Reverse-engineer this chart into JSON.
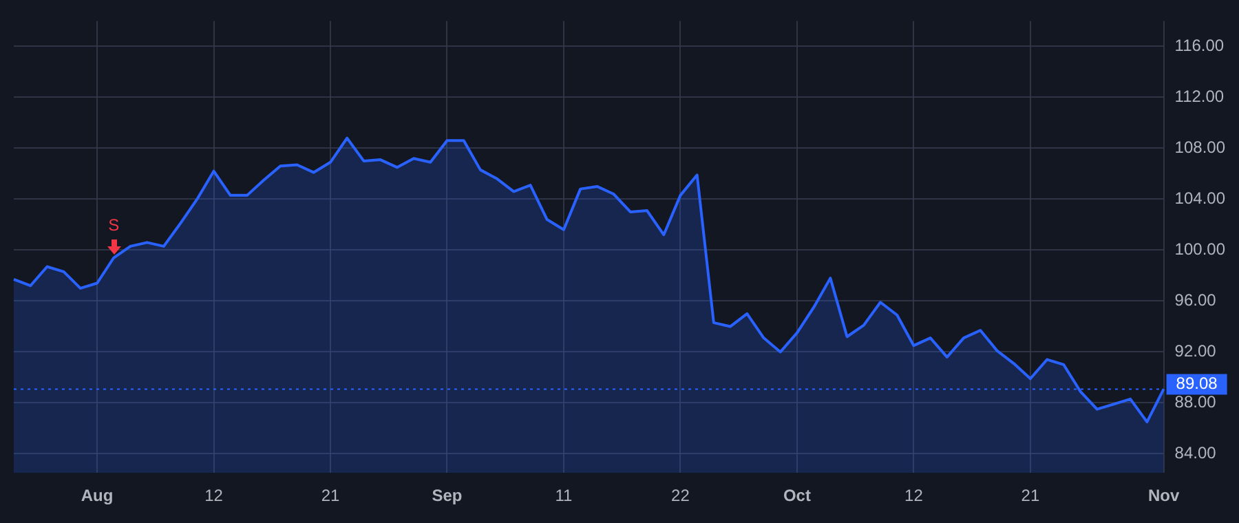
{
  "chart_data": {
    "type": "area",
    "categories": [
      null,
      null,
      null,
      null,
      null,
      "Aug",
      null,
      null,
      null,
      null,
      null,
      null,
      "12",
      null,
      null,
      null,
      null,
      null,
      null,
      "21",
      null,
      null,
      null,
      null,
      null,
      null,
      "Sep",
      null,
      null,
      null,
      null,
      null,
      null,
      "11",
      null,
      null,
      null,
      null,
      null,
      null,
      "22",
      null,
      null,
      null,
      null,
      null,
      null,
      "Oct",
      null,
      null,
      null,
      null,
      null,
      null,
      "12",
      null,
      null,
      null,
      null,
      null,
      null,
      "21",
      null,
      null,
      null,
      null,
      null,
      null,
      null,
      "Nov"
    ],
    "series": [
      {
        "color": "#2962ff",
        "values": [
          97.7,
          97.2,
          98.7,
          98.3,
          97.0,
          97.4,
          99.4,
          100.3,
          100.6,
          100.3,
          102.1,
          104.0,
          106.2,
          104.3,
          104.3,
          105.5,
          106.6,
          106.7,
          106.1,
          106.9,
          108.8,
          107.0,
          107.1,
          106.5,
          107.2,
          106.9,
          108.6,
          108.6,
          106.3,
          105.6,
          104.6,
          105.1,
          102.4,
          101.6,
          104.8,
          105.0,
          104.4,
          103.0,
          103.1,
          101.2,
          104.3,
          105.9,
          94.3,
          94.0,
          95.0,
          93.1,
          92.0,
          93.5,
          95.5,
          97.8,
          93.2,
          94.1,
          95.9,
          94.9,
          92.5,
          93.1,
          91.6,
          93.1,
          93.7,
          92.1,
          91.1,
          89.9,
          91.4,
          91.0,
          88.9,
          87.5,
          87.9,
          88.3,
          86.5,
          89.08
        ]
      }
    ],
    "ylim": [
      82.5,
      118
    ],
    "yticks": [
      {
        "value": 84,
        "label": "84.00"
      },
      {
        "value": 88,
        "label": "88.00"
      },
      {
        "value": 92,
        "label": "92.00"
      },
      {
        "value": 96,
        "label": "96.00"
      },
      {
        "value": 100,
        "label": "100.00"
      },
      {
        "value": 104,
        "label": "104.00"
      },
      {
        "value": 108,
        "label": "108.00"
      },
      {
        "value": 112,
        "label": "112.00"
      },
      {
        "value": 116,
        "label": "116.00"
      }
    ],
    "grid": true,
    "ref_lines": [
      {
        "axis": "y",
        "value": 89.08,
        "label": "89.08",
        "color": "#2962ff",
        "line_style": "dotted"
      }
    ],
    "annotations": [
      {
        "text": "S",
        "y": 99.4
      }
    ]
  }
}
